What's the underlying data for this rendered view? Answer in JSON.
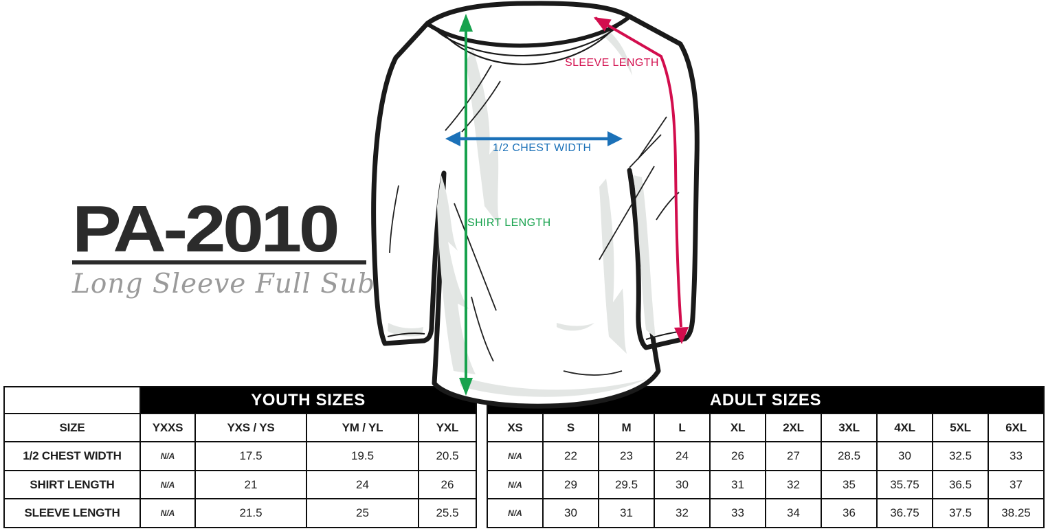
{
  "title": {
    "model": "PA-2010",
    "subtitle": "Long Sleeve Full Sub"
  },
  "diagram": {
    "labels": {
      "sleeve_length": "SLEEVE LENGTH",
      "chest_width": "1/2 CHEST WIDTH",
      "shirt_length": "SHIRT LENGTH"
    },
    "colors": {
      "sleeve": "#d20d4d",
      "chest": "#1b71b8",
      "shirt": "#17a24d",
      "outline": "#1a1a1a",
      "shading": "#e3e6e4",
      "bar": "#000000",
      "subtitle_gray": "#9a9a9a"
    }
  },
  "table": {
    "group_headers": {
      "youth": "YOUTH SIZES",
      "adult": "ADULT SIZES"
    },
    "size_label": "SIZE",
    "youth_columns": [
      "YXXS",
      "YXS / YS",
      "YM / YL",
      "YXL"
    ],
    "adult_columns": [
      "XS",
      "S",
      "M",
      "L",
      "XL",
      "2XL",
      "3XL",
      "4XL",
      "5XL",
      "6XL"
    ],
    "rows": [
      {
        "label": "1/2 CHEST WIDTH",
        "youth": [
          "N/A",
          "17.5",
          "19.5",
          "20.5"
        ],
        "adult": [
          "N/A",
          "22",
          "23",
          "24",
          "26",
          "27",
          "28.5",
          "30",
          "32.5",
          "33"
        ]
      },
      {
        "label": "SHIRT LENGTH",
        "youth": [
          "N/A",
          "21",
          "24",
          "26"
        ],
        "adult": [
          "N/A",
          "29",
          "29.5",
          "30",
          "31",
          "32",
          "35",
          "35.75",
          "36.5",
          "37"
        ]
      },
      {
        "label": "SLEEVE LENGTH",
        "youth": [
          "N/A",
          "21.5",
          "25",
          "25.5"
        ],
        "adult": [
          "N/A",
          "30",
          "31",
          "32",
          "33",
          "34",
          "36",
          "36.75",
          "37.5",
          "38.25"
        ]
      }
    ]
  }
}
